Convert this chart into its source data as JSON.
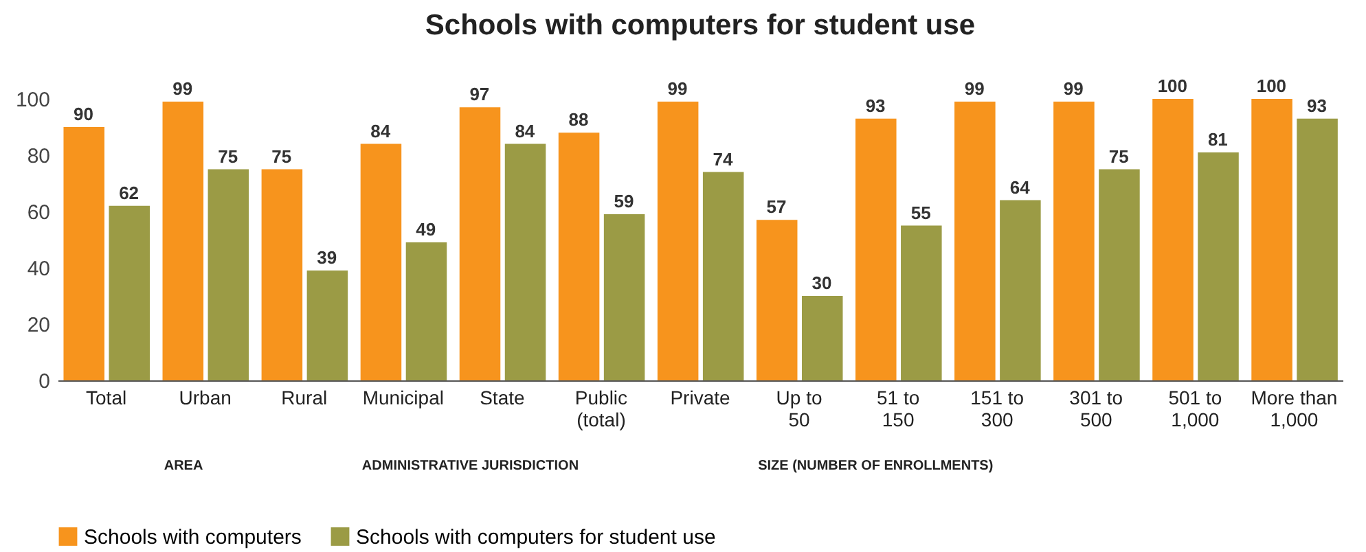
{
  "chart_data": {
    "type": "bar",
    "title": "Schools with computers for student use",
    "categories": [
      "Total",
      "Urban",
      "Rural",
      "Municipal",
      "State",
      "Public (total)",
      "Private",
      "Up to 50",
      "51 to 150",
      "151 to 300",
      "301 to 500",
      "501 to 1,000",
      "More than 1,000"
    ],
    "series": [
      {
        "name": "Schools with computers",
        "color": "#f7941d",
        "values": [
          90,
          99,
          75,
          84,
          97,
          88,
          99,
          57,
          93,
          99,
          99,
          100,
          100
        ]
      },
      {
        "name": "Schools with computers for student use",
        "color": "#9b9b45",
        "values": [
          62,
          75,
          39,
          49,
          84,
          59,
          74,
          30,
          55,
          64,
          75,
          81,
          93
        ]
      }
    ],
    "ylim": [
      0,
      100
    ],
    "yticks": [
      0,
      20,
      40,
      60,
      80,
      100
    ],
    "grid": false,
    "legend": "bottom",
    "data_labels": true,
    "annotations": [
      "AREA",
      "ADMINISTRATIVE JURISDICTION",
      "SIZE (NUMBER OF ENROLLMENTS)"
    ]
  }
}
